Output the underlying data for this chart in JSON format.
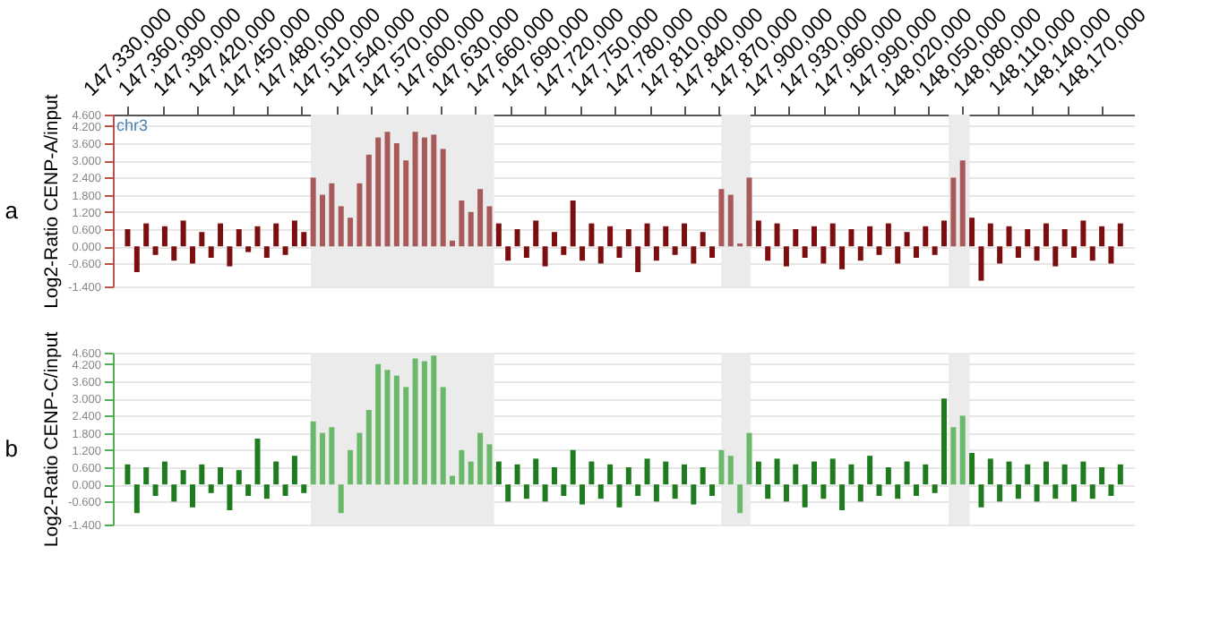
{
  "chart_data": [
    {
      "type": "bar",
      "title": "a",
      "ylabel": "Log2-Ratio CENP-A/input",
      "annotations": [
        "chr3"
      ],
      "xlim": [
        147325000,
        148190000
      ],
      "xticks": [
        {
          "value": 147330000,
          "label": "147,330,000"
        },
        {
          "value": 147360000,
          "label": "147,360,000"
        },
        {
          "value": 147390000,
          "label": "147,390,000"
        },
        {
          "value": 147420000,
          "label": "147,420,000"
        },
        {
          "value": 147450000,
          "label": "147,450,000"
        },
        {
          "value": 147480000,
          "label": "147,480,000"
        },
        {
          "value": 147510000,
          "label": "147,510,000"
        },
        {
          "value": 147540000,
          "label": "147,540,000"
        },
        {
          "value": 147570000,
          "label": "147,570,000"
        },
        {
          "value": 147600000,
          "label": "147,600,000"
        },
        {
          "value": 147630000,
          "label": "147,630,000"
        },
        {
          "value": 147660000,
          "label": "147,660,000"
        },
        {
          "value": 147690000,
          "label": "147,690,000"
        },
        {
          "value": 147720000,
          "label": "147,720,000"
        },
        {
          "value": 147750000,
          "label": "147,750,000"
        },
        {
          "value": 147780000,
          "label": "147,780,000"
        },
        {
          "value": 147810000,
          "label": "147,810,000"
        },
        {
          "value": 147840000,
          "label": "147,840,000"
        },
        {
          "value": 147870000,
          "label": "147,870,000"
        },
        {
          "value": 147900000,
          "label": "147,900,000"
        },
        {
          "value": 147930000,
          "label": "147,930,000"
        },
        {
          "value": 147960000,
          "label": "147,960,000"
        },
        {
          "value": 147990000,
          "label": "147,990,000"
        },
        {
          "value": 148020000,
          "label": "148,020,000"
        },
        {
          "value": 148050000,
          "label": "148,050,000"
        },
        {
          "value": 148080000,
          "label": "148,080,000"
        },
        {
          "value": 148110000,
          "label": "148,110,000"
        },
        {
          "value": 148140000,
          "label": "148,140,000"
        },
        {
          "value": 148170000,
          "label": "148,170,000"
        }
      ],
      "ylim": [
        -1.4,
        4.6
      ],
      "yticks": [
        {
          "value": -1.4,
          "label": "-1.400"
        },
        {
          "value": -0.6,
          "label": "-0.600"
        },
        {
          "value": 0,
          "label": "0.000"
        },
        {
          "value": 0.6,
          "label": "0.600"
        },
        {
          "value": 1.2,
          "label": "1.200"
        },
        {
          "value": 1.8,
          "label": "1.800"
        },
        {
          "value": 2.4,
          "label": "2.400"
        },
        {
          "value": 3.0,
          "label": "3.000"
        },
        {
          "value": 3.6,
          "label": "3.600"
        },
        {
          "value": 4.2,
          "label": "4.200"
        },
        {
          "value": 4.6,
          "label": "4.600"
        }
      ],
      "grid": "y",
      "legend": false,
      "bands": [
        {
          "axis": "x",
          "from": 147488000,
          "to": 147646000,
          "color": "#ebebeb"
        },
        {
          "axis": "x",
          "from": 147842000,
          "to": 147867000,
          "color": "#ebebeb"
        },
        {
          "axis": "x",
          "from": 148038000,
          "to": 148056000,
          "color": "#ebebeb"
        }
      ],
      "series": [
        {
          "color": "#7b0f0f",
          "x": [
            147330000,
            147338000,
            147346000,
            147354000,
            147362000,
            147370000,
            147378000,
            147386000,
            147394000,
            147402000,
            147410000,
            147418000,
            147426000,
            147434000,
            147442000,
            147450000,
            147458000,
            147466000,
            147474000,
            147482000,
            147650000,
            147658000,
            147666000,
            147674000,
            147682000,
            147690000,
            147698000,
            147706000,
            147714000,
            147722000,
            147730000,
            147738000,
            147746000,
            147754000,
            147762000,
            147770000,
            147778000,
            147786000,
            147794000,
            147802000,
            147810000,
            147818000,
            147826000,
            147834000,
            147874000,
            147882000,
            147890000,
            147898000,
            147906000,
            147914000,
            147922000,
            147930000,
            147938000,
            147946000,
            147954000,
            147962000,
            147970000,
            147978000,
            147986000,
            147994000,
            148002000,
            148010000,
            148018000,
            148026000,
            148034000,
            148058000,
            148066000,
            148074000,
            148082000,
            148090000,
            148098000,
            148106000,
            148114000,
            148122000,
            148130000,
            148138000,
            148146000,
            148154000,
            148162000,
            148170000,
            148178000,
            148186000
          ],
          "values": [
            0.6,
            -0.9,
            0.8,
            -0.3,
            0.7,
            -0.5,
            0.9,
            -0.6,
            0.5,
            -0.4,
            0.8,
            -0.7,
            0.6,
            -0.2,
            0.7,
            -0.4,
            0.8,
            -0.3,
            0.9,
            0.5,
            0.8,
            -0.5,
            0.6,
            -0.4,
            0.9,
            -0.7,
            0.5,
            -0.3,
            1.6,
            -0.5,
            0.8,
            -0.6,
            0.7,
            -0.4,
            0.6,
            -0.9,
            0.8,
            -0.5,
            0.7,
            -0.3,
            0.8,
            -0.6,
            0.5,
            -0.4,
            0.9,
            -0.5,
            0.8,
            -0.7,
            0.6,
            -0.4,
            0.7,
            -0.6,
            0.8,
            -0.8,
            0.6,
            -0.5,
            0.7,
            -0.3,
            0.8,
            -0.6,
            0.5,
            -0.4,
            0.7,
            -0.3,
            0.9,
            1.0,
            -1.2,
            0.8,
            -0.6,
            0.7,
            -0.4,
            0.6,
            -0.5,
            0.8,
            -0.7,
            0.6,
            -0.4,
            0.9,
            -0.5,
            0.7,
            -0.6,
            0.8
          ]
        },
        {
          "color": "#a85a5a",
          "x": [
            147490000,
            147498000,
            147506000,
            147514000,
            147522000,
            147530000,
            147538000,
            147546000,
            147554000,
            147562000,
            147570000,
            147578000,
            147586000,
            147594000,
            147602000,
            147610000,
            147618000,
            147626000,
            147634000,
            147642000,
            147842000,
            147850000,
            147858000,
            147866000,
            148042000,
            148050000
          ],
          "values": [
            2.4,
            1.8,
            2.2,
            1.4,
            1.0,
            2.2,
            3.2,
            3.8,
            4.0,
            3.6,
            3.0,
            4.0,
            3.8,
            3.9,
            3.4,
            0.2,
            1.6,
            1.2,
            2.0,
            1.4,
            2.0,
            1.8,
            0.1,
            2.4,
            2.4,
            3.0
          ]
        }
      ]
    },
    {
      "type": "bar",
      "title": "b",
      "ylabel": "Log2-Ratio CENP-C/input",
      "tick_labels": "y",
      "xlim": [
        147325000,
        148190000
      ],
      "ylim": [
        -1.4,
        4.6
      ],
      "yticks": [
        {
          "value": -1.4,
          "label": "-1.400"
        },
        {
          "value": -0.6,
          "label": "-0.600"
        },
        {
          "value": 0,
          "label": "0.000"
        },
        {
          "value": 0.6,
          "label": "0.600"
        },
        {
          "value": 1.2,
          "label": "1.200"
        },
        {
          "value": 1.8,
          "label": "1.800"
        },
        {
          "value": 2.4,
          "label": "2.400"
        },
        {
          "value": 3.0,
          "label": "3.000"
        },
        {
          "value": 3.6,
          "label": "3.600"
        },
        {
          "value": 4.2,
          "label": "4.200"
        },
        {
          "value": 4.6,
          "label": "4.600"
        }
      ],
      "grid": "y",
      "legend": false,
      "bands": [
        {
          "axis": "x",
          "from": 147488000,
          "to": 147646000,
          "color": "#ebebeb"
        },
        {
          "axis": "x",
          "from": 147842000,
          "to": 147867000,
          "color": "#ebebeb"
        },
        {
          "axis": "x",
          "from": 148038000,
          "to": 148056000,
          "color": "#ebebeb"
        }
      ],
      "series": [
        {
          "color": "#1e7b1e",
          "x": [
            147330000,
            147338000,
            147346000,
            147354000,
            147362000,
            147370000,
            147378000,
            147386000,
            147394000,
            147402000,
            147410000,
            147418000,
            147426000,
            147434000,
            147442000,
            147450000,
            147458000,
            147466000,
            147474000,
            147482000,
            147650000,
            147658000,
            147666000,
            147674000,
            147682000,
            147690000,
            147698000,
            147706000,
            147714000,
            147722000,
            147730000,
            147738000,
            147746000,
            147754000,
            147762000,
            147770000,
            147778000,
            147786000,
            147794000,
            147802000,
            147810000,
            147818000,
            147826000,
            147834000,
            147874000,
            147882000,
            147890000,
            147898000,
            147906000,
            147914000,
            147922000,
            147930000,
            147938000,
            147946000,
            147954000,
            147962000,
            147970000,
            147978000,
            147986000,
            147994000,
            148002000,
            148010000,
            148018000,
            148026000,
            148034000,
            148058000,
            148066000,
            148074000,
            148082000,
            148090000,
            148098000,
            148106000,
            148114000,
            148122000,
            148130000,
            148138000,
            148146000,
            148154000,
            148162000,
            148170000,
            148178000,
            148186000
          ],
          "values": [
            0.7,
            -1.0,
            0.6,
            -0.4,
            0.8,
            -0.6,
            0.5,
            -0.8,
            0.7,
            -0.3,
            0.6,
            -0.9,
            0.5,
            -0.4,
            1.6,
            -0.5,
            0.8,
            -0.4,
            1.0,
            -0.3,
            0.8,
            -0.6,
            0.7,
            -0.5,
            0.9,
            -0.6,
            0.6,
            -0.4,
            1.2,
            -0.7,
            0.8,
            -0.5,
            0.7,
            -0.8,
            0.6,
            -0.4,
            0.9,
            -0.6,
            0.8,
            -0.5,
            0.7,
            -0.7,
            0.6,
            -0.4,
            0.8,
            -0.5,
            0.9,
            -0.6,
            0.7,
            -0.8,
            0.8,
            -0.5,
            0.9,
            -0.9,
            0.7,
            -0.6,
            1.0,
            -0.4,
            0.6,
            -0.5,
            0.8,
            -0.4,
            0.7,
            -0.3,
            3.0,
            1.1,
            -0.8,
            0.9,
            -0.6,
            0.8,
            -0.5,
            0.7,
            -0.6,
            0.8,
            -0.5,
            0.7,
            -0.6,
            0.8,
            -0.5,
            0.6,
            -0.4,
            0.7
          ]
        },
        {
          "color": "#6ab86a",
          "x": [
            147490000,
            147498000,
            147506000,
            147514000,
            147522000,
            147530000,
            147538000,
            147546000,
            147554000,
            147562000,
            147570000,
            147578000,
            147586000,
            147594000,
            147602000,
            147610000,
            147618000,
            147626000,
            147634000,
            147642000,
            147842000,
            147850000,
            147858000,
            147866000,
            148042000,
            148050000
          ],
          "values": [
            2.2,
            1.8,
            2.0,
            -1.0,
            1.2,
            1.8,
            2.6,
            4.2,
            4.0,
            3.8,
            3.4,
            4.4,
            4.3,
            4.5,
            3.4,
            0.3,
            1.2,
            0.8,
            1.8,
            1.4,
            1.2,
            1.0,
            -1.0,
            1.8,
            2.0,
            2.4
          ]
        }
      ]
    }
  ]
}
